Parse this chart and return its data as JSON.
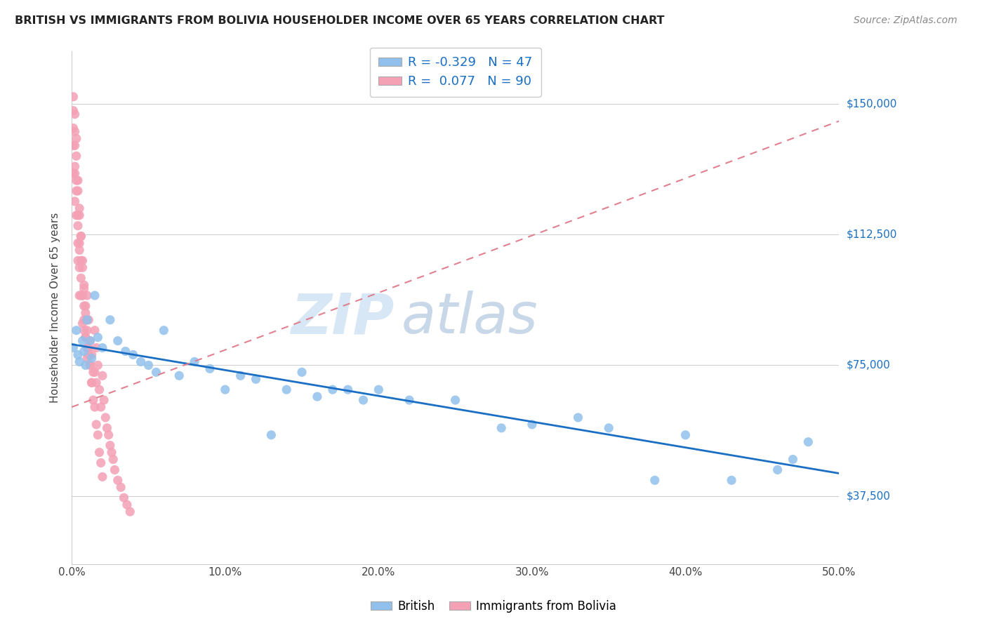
{
  "title": "BRITISH VS IMMIGRANTS FROM BOLIVIA HOUSEHOLDER INCOME OVER 65 YEARS CORRELATION CHART",
  "source": "Source: ZipAtlas.com",
  "ylabel": "Householder Income Over 65 years",
  "yticks": [
    37500,
    75000,
    112500,
    150000
  ],
  "ytick_labels": [
    "$37,500",
    "$75,000",
    "$112,500",
    "$150,000"
  ],
  "xmin": 0.0,
  "xmax": 0.5,
  "ymin": 18000,
  "ymax": 165000,
  "british_R": -0.329,
  "british_N": 47,
  "bolivia_R": 0.077,
  "bolivia_N": 90,
  "british_color": "#92c0ec",
  "bolivia_color": "#f4a0b5",
  "british_line_color": "#1a6fc4",
  "bolivia_line_color": "#e08090",
  "watermark_zip": "ZIP",
  "watermark_atlas": "atlas",
  "british_line_x0": 0.0,
  "british_line_y0": 81000,
  "british_line_x1": 0.5,
  "british_line_y1": 44000,
  "bolivia_line_x0": 0.0,
  "bolivia_line_y0": 63000,
  "bolivia_line_x1": 0.5,
  "bolivia_line_y1": 145000,
  "british_x": [
    0.001,
    0.003,
    0.004,
    0.005,
    0.007,
    0.008,
    0.009,
    0.01,
    0.012,
    0.013,
    0.015,
    0.017,
    0.02,
    0.025,
    0.03,
    0.035,
    0.04,
    0.045,
    0.05,
    0.055,
    0.06,
    0.07,
    0.08,
    0.09,
    0.1,
    0.11,
    0.12,
    0.13,
    0.14,
    0.15,
    0.16,
    0.17,
    0.18,
    0.19,
    0.2,
    0.22,
    0.25,
    0.28,
    0.3,
    0.33,
    0.35,
    0.38,
    0.4,
    0.43,
    0.46,
    0.47,
    0.48
  ],
  "british_y": [
    80000,
    85000,
    78000,
    76000,
    82000,
    79000,
    75000,
    88000,
    82000,
    77000,
    95000,
    83000,
    80000,
    88000,
    82000,
    79000,
    78000,
    76000,
    75000,
    73000,
    85000,
    72000,
    76000,
    74000,
    68000,
    72000,
    71000,
    55000,
    68000,
    73000,
    66000,
    68000,
    68000,
    65000,
    68000,
    65000,
    65000,
    57000,
    58000,
    60000,
    57000,
    42000,
    55000,
    42000,
    45000,
    48000,
    53000
  ],
  "bolivia_x": [
    0.001,
    0.001,
    0.001,
    0.002,
    0.002,
    0.002,
    0.002,
    0.003,
    0.003,
    0.003,
    0.004,
    0.004,
    0.004,
    0.004,
    0.005,
    0.005,
    0.005,
    0.005,
    0.006,
    0.006,
    0.006,
    0.007,
    0.007,
    0.007,
    0.008,
    0.008,
    0.008,
    0.009,
    0.009,
    0.01,
    0.01,
    0.01,
    0.011,
    0.011,
    0.012,
    0.012,
    0.013,
    0.013,
    0.014,
    0.015,
    0.015,
    0.016,
    0.016,
    0.017,
    0.018,
    0.019,
    0.02,
    0.021,
    0.022,
    0.023,
    0.024,
    0.025,
    0.026,
    0.027,
    0.028,
    0.03,
    0.032,
    0.034,
    0.036,
    0.038,
    0.001,
    0.001,
    0.002,
    0.002,
    0.003,
    0.003,
    0.004,
    0.004,
    0.005,
    0.005,
    0.006,
    0.006,
    0.007,
    0.007,
    0.008,
    0.008,
    0.009,
    0.009,
    0.01,
    0.01,
    0.011,
    0.012,
    0.013,
    0.014,
    0.015,
    0.016,
    0.017,
    0.018,
    0.019,
    0.02
  ],
  "bolivia_y": [
    148000,
    138000,
    130000,
    147000,
    138000,
    130000,
    122000,
    135000,
    128000,
    118000,
    125000,
    118000,
    110000,
    105000,
    118000,
    110000,
    103000,
    95000,
    112000,
    105000,
    95000,
    103000,
    95000,
    87000,
    98000,
    92000,
    85000,
    90000,
    83000,
    95000,
    88000,
    80000,
    88000,
    78000,
    82000,
    75000,
    78000,
    70000,
    73000,
    85000,
    73000,
    80000,
    70000,
    75000,
    68000,
    63000,
    72000,
    65000,
    60000,
    57000,
    55000,
    52000,
    50000,
    48000,
    45000,
    42000,
    40000,
    37000,
    35000,
    33000,
    152000,
    143000,
    142000,
    132000,
    140000,
    125000,
    128000,
    115000,
    120000,
    108000,
    112000,
    100000,
    105000,
    95000,
    97000,
    88000,
    92000,
    83000,
    85000,
    77000,
    80000,
    75000,
    70000,
    65000,
    63000,
    58000,
    55000,
    50000,
    47000,
    43000
  ]
}
